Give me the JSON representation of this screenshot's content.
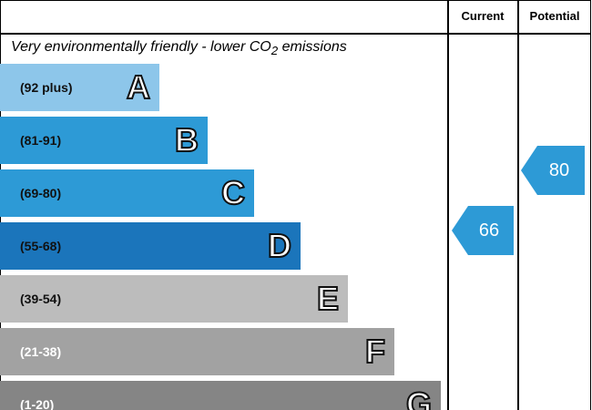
{
  "header": {
    "current": "Current",
    "potential": "Potential"
  },
  "subtitle": {
    "text": "Very environmentally friendly - lower CO",
    "subscript": "2",
    "suffix": " emissions"
  },
  "bands": [
    {
      "range": "(92 plus)",
      "letter": "A",
      "color": "#8dc6ea"
    },
    {
      "range": "(81-91)",
      "letter": "B",
      "color": "#2d9ad6"
    },
    {
      "range": "(69-80)",
      "letter": "C",
      "color": "#2d9ad6"
    },
    {
      "range": "(55-68)",
      "letter": "D",
      "color": "#1b75bb"
    },
    {
      "range": "(39-54)",
      "letter": "E",
      "color": "#bcbcbc"
    },
    {
      "range": "(21-38)",
      "letter": "F",
      "color": "#a2a2a2"
    },
    {
      "range": "(1-20)",
      "letter": "G",
      "color": "#858585"
    }
  ],
  "current": {
    "value": "66",
    "color": "#2d9ad6"
  },
  "potential": {
    "value": "80",
    "color": "#2d9ad6"
  }
}
